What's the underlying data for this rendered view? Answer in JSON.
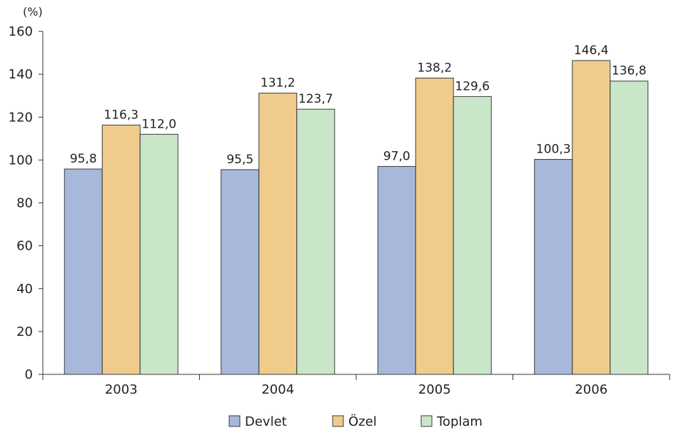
{
  "chart_data": {
    "type": "bar",
    "unit_label": "(%)",
    "categories": [
      "2003",
      "2004",
      "2005",
      "2006"
    ],
    "series": [
      {
        "name": "Devlet",
        "color": "#a7b8db",
        "values": [
          95.8,
          95.5,
          97.0,
          100.3
        ],
        "labels": [
          "95,8",
          "95,5",
          "97,0",
          "100,3"
        ]
      },
      {
        "name": "Özel",
        "color": "#efcb8c",
        "values": [
          116.3,
          131.2,
          138.2,
          146.4
        ],
        "labels": [
          "116,3",
          "131,2",
          "138,2",
          "146,4"
        ]
      },
      {
        "name": "Toplam",
        "color": "#c9e6c9",
        "values": [
          112.0,
          123.7,
          129.6,
          136.8
        ],
        "labels": [
          "112,0",
          "123,7",
          "129,6",
          "136,8"
        ]
      }
    ],
    "ylim": [
      0,
      160
    ],
    "yticks": [
      0,
      20,
      40,
      60,
      80,
      100,
      120,
      140,
      160
    ],
    "grid": false,
    "legend_position": "bottom-center"
  }
}
